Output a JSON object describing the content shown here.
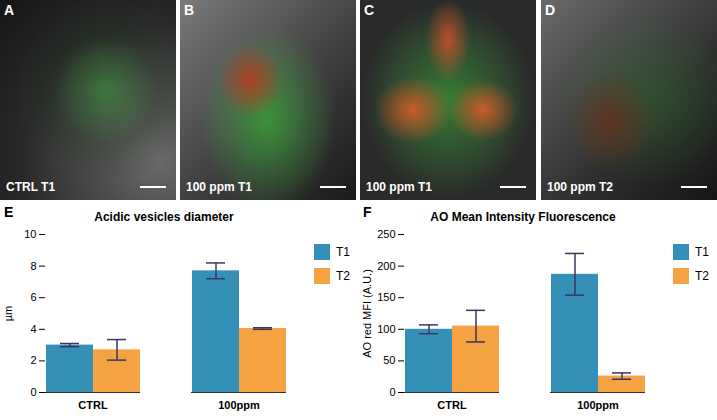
{
  "panels": [
    {
      "letter": "A",
      "label": "CTRL T1"
    },
    {
      "letter": "B",
      "label": "100 ppm T1"
    },
    {
      "letter": "C",
      "label": "100 ppm T1"
    },
    {
      "letter": "D",
      "label": "100 ppm T2"
    }
  ],
  "chart_data": [
    {
      "type": "bar",
      "letter": "E",
      "title": "Acidic vesicles diameter",
      "y_label": "µm",
      "categories": [
        "CTRL",
        "100ppm"
      ],
      "series": [
        {
          "name": "T1",
          "color": "#3590b8",
          "values": [
            3.0,
            7.7
          ],
          "errors": [
            0.1,
            0.5
          ]
        },
        {
          "name": "T2",
          "color": "#f5a243",
          "values": [
            2.7,
            4.05
          ],
          "errors": [
            0.65,
            0.05
          ]
        }
      ],
      "ylim": [
        0,
        10
      ],
      "yticks": [
        0,
        2,
        4,
        6,
        8,
        10
      ],
      "legend": "right"
    },
    {
      "type": "bar",
      "letter": "F",
      "title": "AO Mean Intensity Fluorescence",
      "y_label": "AO red MFI (A.U.)",
      "categories": [
        "CTRL",
        "100ppm"
      ],
      "series": [
        {
          "name": "T1",
          "color": "#3590b8",
          "values": [
            100,
            187
          ],
          "errors": [
            7,
            33
          ]
        },
        {
          "name": "T2",
          "color": "#f5a243",
          "values": [
            105,
            26
          ],
          "errors": [
            25,
            5
          ]
        }
      ],
      "ylim": [
        0,
        250
      ],
      "yticks": [
        0,
        50,
        100,
        150,
        200,
        250
      ],
      "legend": "right"
    }
  ]
}
